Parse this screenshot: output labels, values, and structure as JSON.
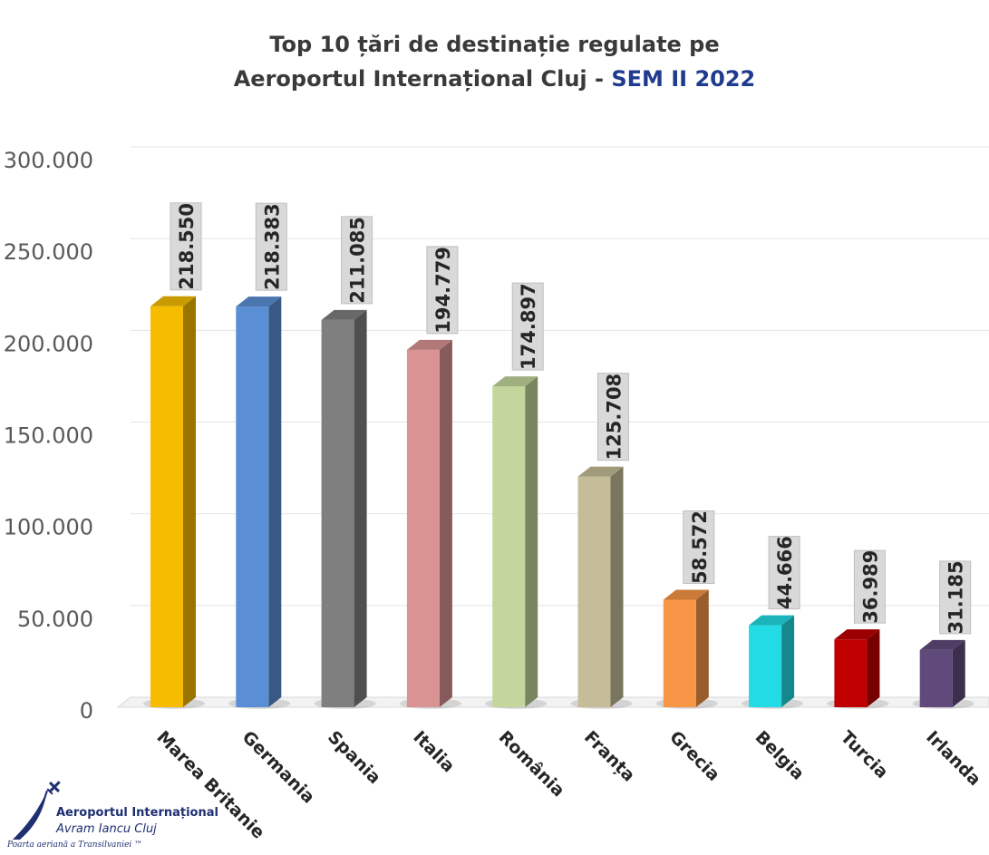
{
  "title": {
    "line1": "Top 10 țări de destinație regulate pe",
    "line2_prefix": "Aeroportul Internațional Cluj - ",
    "line2_accent": "SEM II 2022"
  },
  "chart_data": {
    "type": "bar",
    "title": "Top 10 țări de destinație regulate pe Aeroportul Internațional Cluj - SEM II 2022",
    "categories": [
      "Marea Britanie",
      "Germania",
      "Spania",
      "Italia",
      "România",
      "Franța",
      "Grecia",
      "Belgia",
      "Turcia",
      "Irlanda"
    ],
    "values": [
      218550,
      218383,
      211085,
      194779,
      174897,
      125708,
      58572,
      44666,
      36989,
      31185
    ],
    "data_labels": [
      "218.550",
      "218.383",
      "211.085",
      "194.779",
      "174.897",
      "125.708",
      "58.572",
      "44.666",
      "36.989",
      "31.185"
    ],
    "y_ticks": [
      0,
      50000,
      100000,
      150000,
      200000,
      250000,
      300000
    ],
    "y_tick_labels": [
      "0",
      "50.000",
      "100.000",
      "150.000",
      "200.000",
      "250.000",
      "300.000"
    ],
    "ylim": [
      0,
      300000
    ],
    "xlabel": "",
    "ylabel": "",
    "grid": true,
    "legend": "none",
    "colors": [
      "#f6bd00",
      "#5a8fd6",
      "#7f7f7f",
      "#d99393",
      "#c3d69b",
      "#c4bd97",
      "#f79646",
      "#22dbe4",
      "#c00000",
      "#604a7b"
    ]
  },
  "logo": {
    "line1": "Aeroportul Internațional",
    "line2": "Avram Iancu Cluj",
    "line3": "Poarta aeriană a Transilvaniei ™"
  }
}
